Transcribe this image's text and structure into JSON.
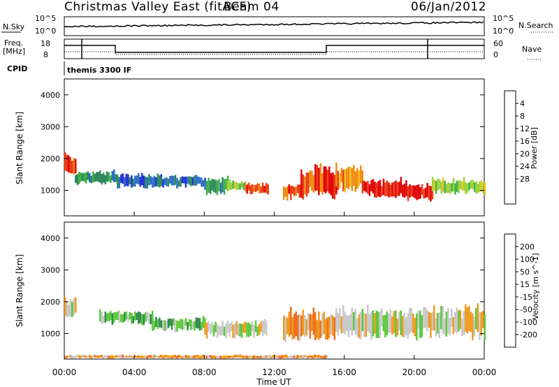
{
  "header": {
    "title": "Christmas Valley East (fitACF)",
    "beam": "Beam 04",
    "date": "06/Jan/2012"
  },
  "aux_panels": {
    "nsky_label": "N.Sky",
    "nsearch_label": "N.Search",
    "nsky_ticks": [
      "10^5",
      "10^0"
    ],
    "nsearch_ticks": [
      "10^5",
      "10^0"
    ],
    "freq_label_line1": "Freq.",
    "freq_label_line2": "[MHz]",
    "freq_ticks": [
      "18",
      "8"
    ],
    "nave_label": "Nave",
    "nave_ticks": [
      "60",
      "0"
    ],
    "cpid_label": "CPID",
    "cpid_text": "themis 3300 IF"
  },
  "chart_data": [
    {
      "type": "heatmap",
      "name": "Power",
      "ylabel": "Slant Range [km]",
      "y_ticks": [
        1000,
        2000,
        3000,
        4000
      ],
      "ylim": [
        200,
        4500
      ],
      "xlim_hours": [
        0,
        24
      ],
      "colorbar": {
        "label": "Power [dB]",
        "ticks": [
          "4",
          "8",
          "12",
          "16",
          "20",
          "24",
          "28"
        ],
        "colors": [
          "#1f2fd6",
          "#2a6fc9",
          "#2e8a5a",
          "#3fb04a",
          "#9cd23a",
          "#f0c020",
          "#f08a10",
          "#e8401a",
          "#e00000"
        ]
      },
      "bands": [
        {
          "t": [
            0.0,
            0.6
          ],
          "r": [
            1500,
            2100
          ],
          "level": 7
        },
        {
          "t": [
            0.6,
            3.0
          ],
          "r": [
            1200,
            1600
          ],
          "level": 2
        },
        {
          "t": [
            3.0,
            5.5
          ],
          "r": [
            1100,
            1500
          ],
          "level": 1
        },
        {
          "t": [
            5.5,
            8.0
          ],
          "r": [
            1100,
            1450
          ],
          "level": 1
        },
        {
          "t": [
            8.0,
            9.3
          ],
          "r": [
            900,
            1400
          ],
          "level": 2
        },
        {
          "t": [
            9.3,
            10.3
          ],
          "r": [
            1000,
            1350
          ],
          "level": 4
        },
        {
          "t": [
            10.3,
            11.6
          ],
          "r": [
            900,
            1250
          ],
          "level": 7
        },
        {
          "t": [
            12.5,
            13.5
          ],
          "r": [
            750,
            1200
          ],
          "level": 7
        },
        {
          "t": [
            13.5,
            15.5
          ],
          "r": [
            800,
            1700
          ],
          "level": 7
        },
        {
          "t": [
            15.5,
            17.0
          ],
          "r": [
            1000,
            1800
          ],
          "level": 6
        },
        {
          "t": [
            17.0,
            19.5
          ],
          "r": [
            800,
            1350
          ],
          "level": 8
        },
        {
          "t": [
            19.5,
            21.0
          ],
          "r": [
            700,
            1200
          ],
          "level": 8
        },
        {
          "t": [
            21.0,
            24.0
          ],
          "r": [
            900,
            1350
          ],
          "level": 4
        }
      ]
    },
    {
      "type": "heatmap",
      "name": "Velocity",
      "ylabel": "Slant Range [km]",
      "y_ticks": [
        1000,
        2000,
        3000,
        4000
      ],
      "ylim": [
        200,
        4500
      ],
      "xlim_hours": [
        0,
        24
      ],
      "colorbar": {
        "label": "Velocity [m s^-1]",
        "ticks": [
          "200",
          "100",
          "50",
          "15",
          "-15",
          "-50",
          "-100",
          "-200"
        ],
        "colors": [
          "#1f2fd6",
          "#2a6a9c",
          "#2e8a4a",
          "#5ac83a",
          "#c8c8c8",
          "#f09a20",
          "#f07020",
          "#e83a1a",
          "#e00000"
        ]
      },
      "bands": [
        {
          "t": [
            0.0,
            0.6
          ],
          "r": [
            1500,
            2100
          ],
          "level": 4
        },
        {
          "t": [
            2.0,
            5.0
          ],
          "r": [
            1300,
            1700
          ],
          "level": 3
        },
        {
          "t": [
            5.0,
            8.0
          ],
          "r": [
            1100,
            1500
          ],
          "level": 3
        },
        {
          "t": [
            8.0,
            11.5
          ],
          "r": [
            900,
            1400
          ],
          "level": 4
        },
        {
          "t": [
            12.5,
            15.5
          ],
          "r": [
            800,
            1700
          ],
          "level": 5
        },
        {
          "t": [
            15.5,
            24.0
          ],
          "r": [
            900,
            1800
          ],
          "level": 4
        },
        {
          "t": [
            0.0,
            15.0
          ],
          "r": [
            220,
            330
          ],
          "level": 5
        }
      ]
    }
  ],
  "x_axis": {
    "ticks": [
      "00:00",
      "04:00",
      "08:00",
      "12:00",
      "16:00",
      "20:00",
      "00:00"
    ],
    "label": "Time UT"
  }
}
